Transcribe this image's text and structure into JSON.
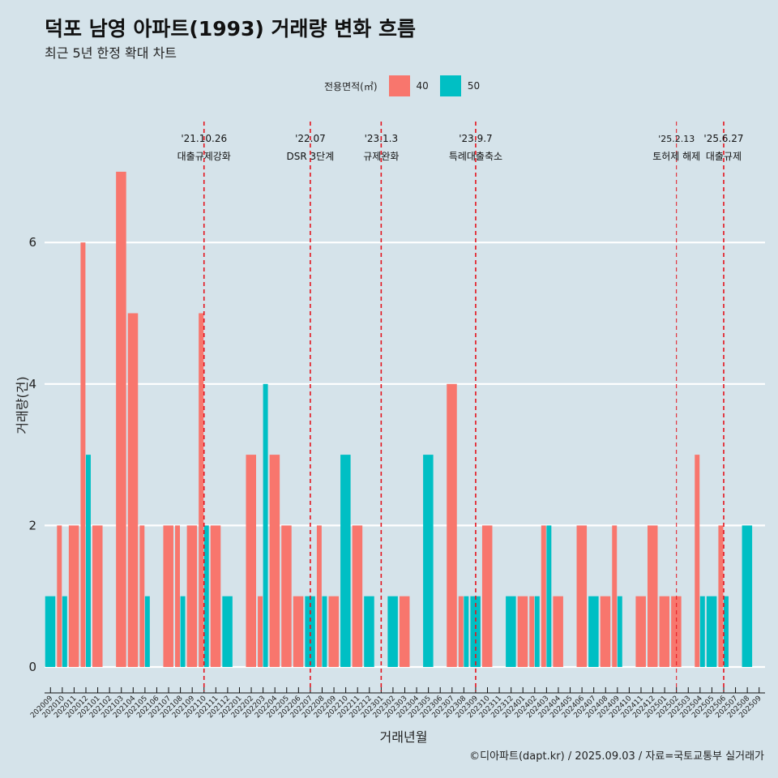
{
  "header": {
    "title": "덕포 남영 아파트(1993) 거래량 변화 흐름",
    "subtitle": "최근 5년 한정 확대 차트"
  },
  "legend": {
    "title": "전용면적(㎡)",
    "items": [
      {
        "label": "40",
        "color": "#f8766d"
      },
      {
        "label": "50",
        "color": "#00bfc4"
      }
    ]
  },
  "caption": "©디아파트(dapt.kr) / 2025.09.03 / 자료=국토교통부 실거래가",
  "chart_data": {
    "type": "bar",
    "ylabel": "거래량(건)",
    "xlabel": "거래년월",
    "ylim": [
      -0.3,
      7.5
    ],
    "yticks": [
      0,
      2,
      4,
      6
    ],
    "grid": true,
    "legend_position": "top",
    "categories": [
      "202009",
      "202010",
      "202011",
      "202012",
      "202101",
      "202102",
      "202103",
      "202104",
      "202105",
      "202106",
      "202107",
      "202108",
      "202109",
      "202110",
      "202111",
      "202112",
      "202201",
      "202202",
      "202203",
      "202204",
      "202205",
      "202206",
      "202207",
      "202208",
      "202209",
      "202210",
      "202211",
      "202212",
      "202301",
      "202302",
      "202303",
      "202304",
      "202305",
      "202306",
      "202307",
      "202308",
      "202309",
      "202310",
      "202311",
      "202312",
      "202401",
      "202402",
      "202403",
      "202404",
      "202405",
      "202406",
      "202407",
      "202408",
      "202409",
      "202410",
      "202411",
      "202412",
      "202501",
      "202502",
      "202503",
      "202504",
      "202505",
      "202506",
      "202507",
      "202508",
      "202509"
    ],
    "series": [
      {
        "name": "40",
        "color": "#f8766d",
        "values": [
          null,
          2,
          2,
          6,
          2,
          null,
          7,
          5,
          2,
          null,
          2,
          2,
          2,
          5,
          2,
          null,
          null,
          3,
          1,
          3,
          2,
          1,
          null,
          2,
          1,
          null,
          2,
          null,
          null,
          null,
          1,
          null,
          null,
          null,
          4,
          1,
          null,
          2,
          null,
          null,
          1,
          1,
          2,
          1,
          null,
          2,
          null,
          1,
          2,
          null,
          1,
          2,
          1,
          1,
          null,
          3,
          null,
          2,
          null,
          null,
          null
        ]
      },
      {
        "name": "50",
        "color": "#00bfc4",
        "values": [
          1,
          1,
          null,
          3,
          null,
          null,
          null,
          null,
          1,
          null,
          null,
          1,
          null,
          2,
          null,
          1,
          null,
          null,
          4,
          null,
          null,
          null,
          1,
          1,
          null,
          3,
          null,
          1,
          null,
          1,
          null,
          null,
          3,
          null,
          null,
          1,
          1,
          null,
          null,
          1,
          null,
          1,
          2,
          null,
          null,
          null,
          1,
          null,
          1,
          null,
          null,
          null,
          null,
          null,
          null,
          1,
          1,
          1,
          null,
          2,
          null
        ]
      }
    ],
    "events": [
      {
        "date": "'21.10.26",
        "label": "대출규제강화",
        "at": "202110"
      },
      {
        "date": "'22.07",
        "label": "DSR 3단계",
        "at": "202207"
      },
      {
        "date": "'23.1.3",
        "label": "규제완화",
        "at": "202301"
      },
      {
        "date": "'23.9.7",
        "label": "특례대출축소",
        "at": "202309"
      },
      {
        "date": "'25.2.13",
        "label": "토허제 해제",
        "at": "202502"
      },
      {
        "date": "'25.6.27",
        "label": "대출규제",
        "at": "202506"
      }
    ]
  }
}
